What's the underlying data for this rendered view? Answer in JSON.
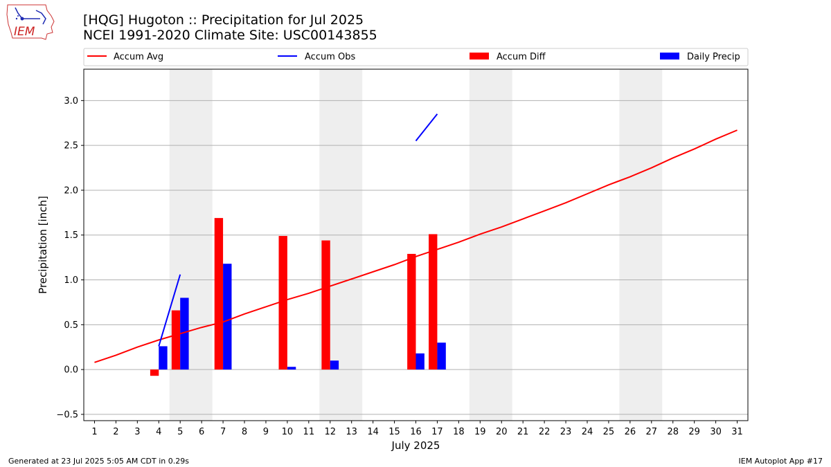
{
  "header": {
    "title_line1": "[HQG] Hugoton :: Precipitation for Jul 2025",
    "title_line2": "NCEI 1991-2020 Climate Site: USC00143855"
  },
  "logo": {
    "text": "IEM"
  },
  "footer": {
    "generated": "Generated at 23 Jul 2025 5:05 AM CDT in 0.29s",
    "app": "IEM Autoplot App #17"
  },
  "colors": {
    "accum_avg": "#ff0000",
    "accum_obs": "#0000ff",
    "accum_diff": "#ff0000",
    "daily_precip": "#0000ff",
    "weekend_shade": "#eeeeee",
    "grid": "#b0b0b0"
  },
  "chart_data": {
    "type": "bar",
    "xlabel": "July 2025",
    "ylabel": "Precipitation [inch]",
    "ylim": [
      -0.57,
      3.35
    ],
    "xlim": [
      0.5,
      31.5
    ],
    "yticks": [
      -0.5,
      0.0,
      0.5,
      1.0,
      1.5,
      2.0,
      2.5,
      3.0
    ],
    "ytick_labels": [
      "−0.5",
      "0.0",
      "0.5",
      "1.0",
      "1.5",
      "2.0",
      "2.5",
      "3.0"
    ],
    "days": [
      1,
      2,
      3,
      4,
      5,
      6,
      7,
      8,
      9,
      10,
      11,
      12,
      13,
      14,
      15,
      16,
      17,
      18,
      19,
      20,
      21,
      22,
      23,
      24,
      25,
      26,
      27,
      28,
      29,
      30,
      31
    ],
    "grid": "horizontal",
    "legend_position": "top",
    "shaded_days": [
      [
        5,
        6
      ],
      [
        12,
        13
      ],
      [
        19,
        20
      ],
      [
        26,
        27
      ]
    ],
    "series": [
      {
        "name": "Accum Avg",
        "kind": "line",
        "x": [
          1,
          2,
          3,
          4,
          5,
          6,
          7,
          8,
          9,
          10,
          11,
          12,
          13,
          14,
          15,
          16,
          17,
          18,
          19,
          20,
          21,
          22,
          23,
          24,
          25,
          26,
          27,
          28,
          29,
          30,
          31
        ],
        "values": [
          0.08,
          0.16,
          0.25,
          0.33,
          0.4,
          0.47,
          0.53,
          0.62,
          0.7,
          0.78,
          0.85,
          0.93,
          1.01,
          1.09,
          1.17,
          1.26,
          1.34,
          1.42,
          1.51,
          1.59,
          1.68,
          1.77,
          1.86,
          1.96,
          2.06,
          2.15,
          2.25,
          2.36,
          2.46,
          2.57,
          2.67
        ]
      },
      {
        "name": "Accum Obs",
        "kind": "line",
        "segments": [
          {
            "x": [
              4,
              5
            ],
            "values": [
              0.26,
              1.06
            ]
          },
          {
            "x": [
              16,
              17
            ],
            "values": [
              2.55,
              2.85
            ]
          }
        ]
      },
      {
        "name": "Accum Diff",
        "kind": "bar",
        "x": [
          4,
          5,
          7,
          10,
          12,
          16,
          17
        ],
        "values": [
          -0.07,
          0.66,
          1.69,
          1.49,
          1.44,
          1.29,
          1.51
        ]
      },
      {
        "name": "Daily Precip",
        "kind": "bar",
        "x": [
          4,
          5,
          7,
          10,
          12,
          16,
          17
        ],
        "values": [
          0.26,
          0.8,
          1.18,
          0.03,
          0.1,
          0.18,
          0.3
        ]
      }
    ]
  }
}
